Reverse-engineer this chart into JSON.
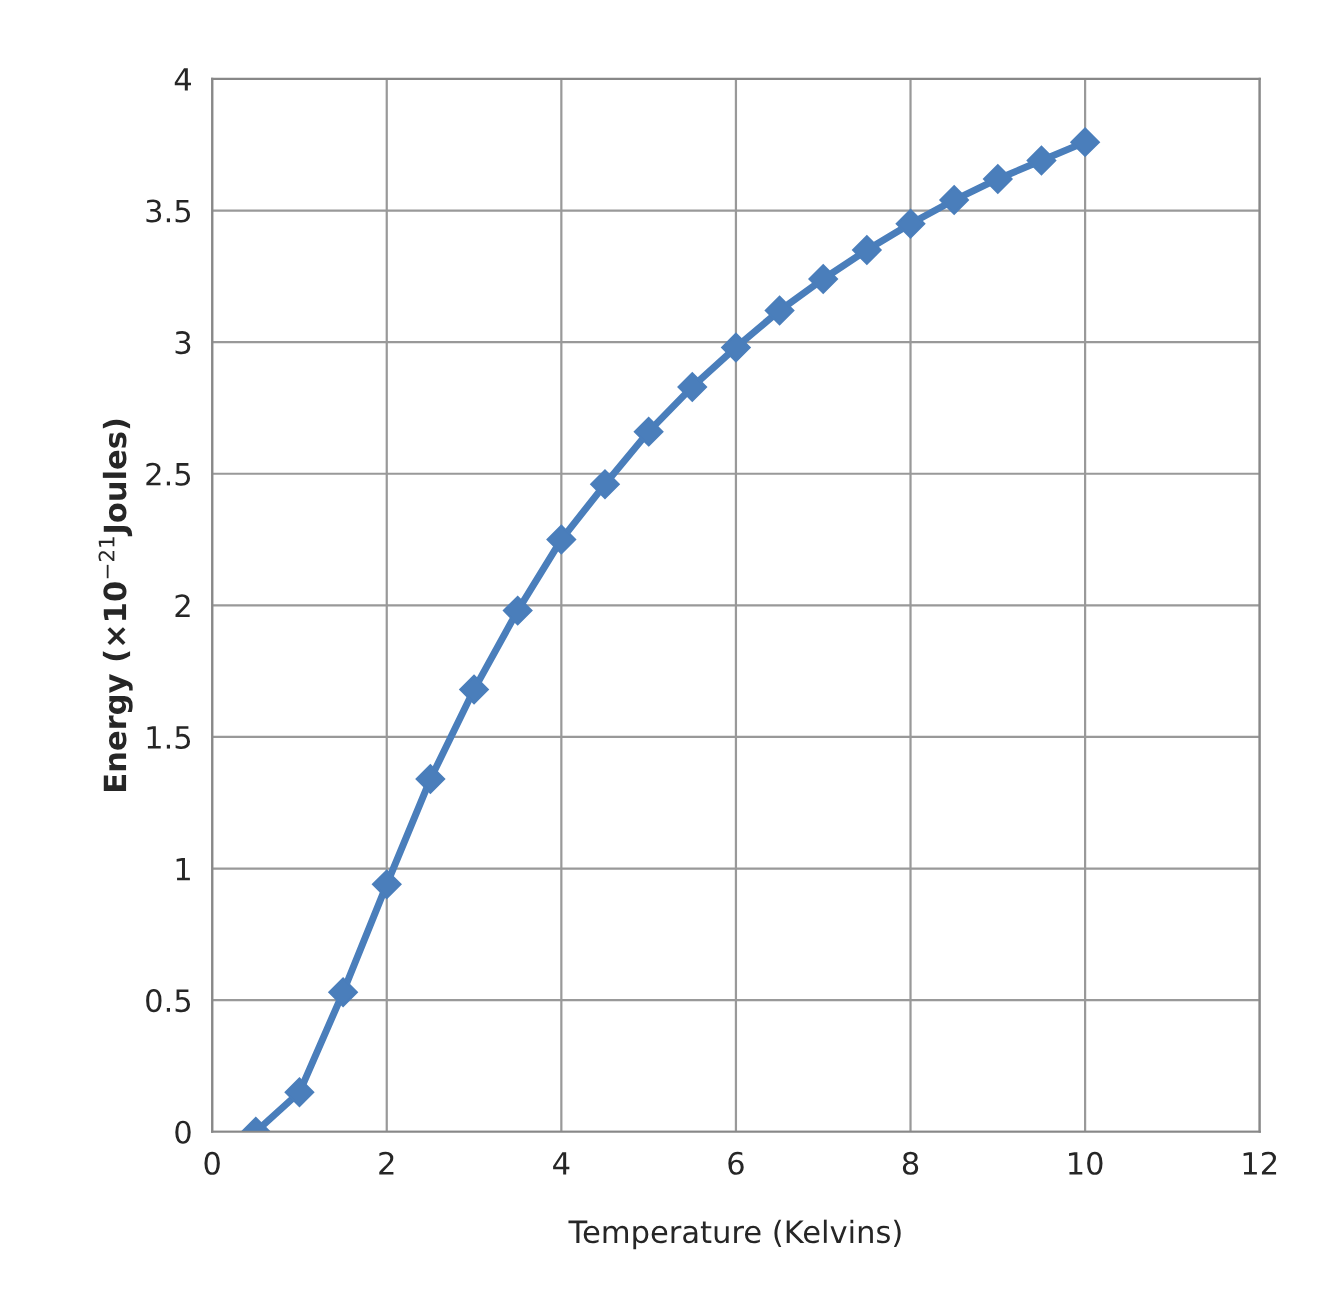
{
  "chart_data": {
    "type": "line",
    "xlabel": "Temperature (Kelvins)",
    "ylabel": "Energy (×10$^{−21}$Joules)",
    "x": [
      0.5,
      1,
      1.5,
      2,
      2.5,
      3,
      3.5,
      4,
      4.5,
      5,
      5.5,
      6,
      6.5,
      7,
      7.5,
      8,
      8.5,
      9,
      9.5,
      10
    ],
    "series": [
      {
        "color": "#4a7ebb",
        "values": [
          0,
          0.15,
          0.53,
          0.94,
          1.34,
          1.68,
          1.98,
          2.25,
          2.46,
          2.66,
          2.83,
          2.98,
          3.12,
          3.24,
          3.35,
          3.45,
          3.54,
          3.62,
          3.69,
          3.76
        ]
      }
    ],
    "xlim": [
      0,
      12
    ],
    "xticks": [
      0,
      2,
      4,
      6,
      8,
      10,
      12
    ],
    "ylim": [
      0,
      4
    ],
    "yticks": [
      0,
      0.5,
      1,
      1.5,
      2,
      2.5,
      3,
      3.5,
      4
    ],
    "grid": true,
    "marker": "diamond",
    "line_style": "solid",
    "legend": false
  }
}
